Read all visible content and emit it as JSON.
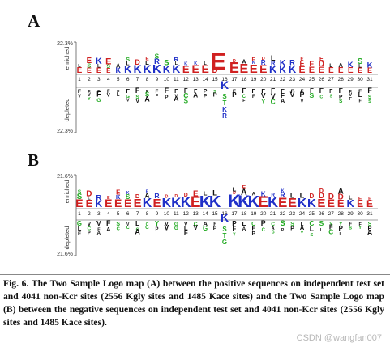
{
  "panels": [
    {
      "letter": "A",
      "top_value": "22.3%",
      "bottom_value": "22.3%",
      "enriched_label": "enriched",
      "depleted_label": "depleted",
      "positions": [
        "1",
        "2",
        "3",
        "4",
        "5",
        "6",
        "7",
        "8",
        "9",
        "10",
        "11",
        "12",
        "13",
        "14",
        "15",
        "16",
        "17",
        "18",
        "19",
        "20",
        "21",
        "22",
        "23",
        "24",
        "25",
        "26",
        "27",
        "28",
        "29",
        "30",
        "31"
      ],
      "center_residue": "K",
      "enriched_residues": [
        "E",
        "E",
        "E",
        "E",
        "K",
        "K",
        "K",
        "K",
        "K",
        "K",
        "K",
        "E",
        "E",
        "E",
        "E",
        "",
        "E",
        "E",
        "E",
        "E",
        "K",
        "K",
        "K",
        "E",
        "E",
        "E",
        "E",
        "E",
        "E",
        "E",
        "E"
      ],
      "depleted_residues": [
        "F",
        "F",
        "F",
        "F",
        "F",
        "F",
        "F",
        "F",
        "F",
        "F",
        "F",
        "F",
        "F",
        "P",
        "S",
        "",
        "F",
        "F",
        "F",
        "F",
        "F",
        "F",
        "F",
        "F",
        "F",
        "F",
        "F",
        "F",
        "F",
        "F",
        "F"
      ]
    },
    {
      "letter": "B",
      "top_value": "21.6%",
      "bottom_value": "21.6%",
      "enriched_label": "enriched",
      "depleted_label": "depleted",
      "positions": [
        "1",
        "2",
        "3",
        "4",
        "5",
        "6",
        "7",
        "8",
        "9",
        "10",
        "11",
        "12",
        "13",
        "14",
        "15",
        "16",
        "17",
        "18",
        "19",
        "20",
        "21",
        "22",
        "23",
        "24",
        "25",
        "26",
        "27",
        "28",
        "29",
        "30",
        "31"
      ],
      "center_residue": "K",
      "enriched_residues": [
        "E",
        "E",
        "K",
        "E",
        "E",
        "E",
        "E",
        "K",
        "E",
        "K",
        "K",
        "K",
        "E",
        "K",
        "K",
        "",
        "K",
        "K",
        "K",
        "E",
        "K",
        "E",
        "E",
        "K",
        "K",
        "E",
        "E",
        "E",
        "K",
        "E",
        "E"
      ]
    }
  ],
  "caption": "Fig. 6. The Two Sample Logo map (A) between the positive sequences on independent test set and 4041 non-Kcr sites (2556 Kgly sites and 1485 Kace sites) and the Two Sample Logo map (B) between the negative sequences on independent test set and 4041 non-Kcr sites (2556 Kgly sites and 1485 Kace sites).",
  "watermark": "CSDN @wangfan007",
  "colors": {
    "acidic": "#d02020",
    "basic": "#2030c8",
    "hydrophobic": "#111111",
    "polar": "#22aa22",
    "other": "#c060c0"
  }
}
